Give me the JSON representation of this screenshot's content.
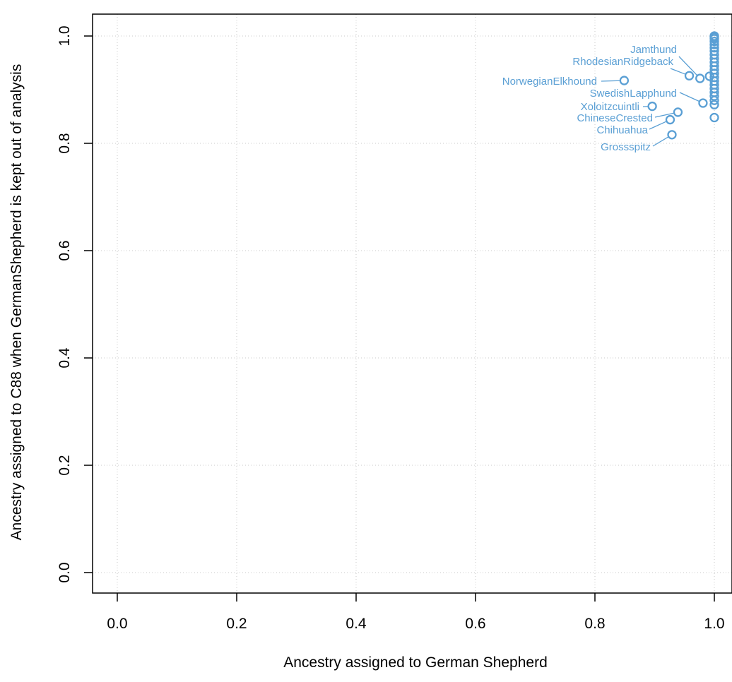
{
  "colors": {
    "points": "#5a9fd4",
    "axis": "#000000",
    "grid": "#c8c8c8"
  },
  "chart_data": {
    "type": "scatter",
    "title": "",
    "xlabel": "Ancestry assigned to German Shepherd",
    "ylabel": "Ancestry assigned to C88 when GermanShepherd is kept out of analysis",
    "xlim": [
      -0.04,
      1.04
    ],
    "ylim": [
      -0.04,
      1.04
    ],
    "xticks": [
      "0.0",
      "0.2",
      "0.4",
      "0.6",
      "0.8",
      "1.0"
    ],
    "yticks": [
      "0.0",
      "0.2",
      "0.4",
      "0.6",
      "0.8",
      "1.0"
    ],
    "grid": true,
    "series": [
      {
        "points": [
          {
            "x": 0.849,
            "y": 0.917,
            "label": "NorwegianElkhound"
          },
          {
            "x": 0.896,
            "y": 0.869,
            "label": "Xoloitzcuintli"
          },
          {
            "x": 0.939,
            "y": 0.858,
            "label": "ChineseCrested"
          },
          {
            "x": 0.926,
            "y": 0.844,
            "label": "Chihuahua"
          },
          {
            "x": 0.929,
            "y": 0.816,
            "label": "Grossspitz"
          },
          {
            "x": 0.958,
            "y": 0.926,
            "label": "RhodesianRidgeback"
          },
          {
            "x": 0.976,
            "y": 0.921,
            "label": "Jamthund"
          },
          {
            "x": 0.981,
            "y": 0.875,
            "label": "SwedishLapphund"
          },
          {
            "x": 0.992,
            "y": 0.925,
            "label": ""
          },
          {
            "x": 1.0,
            "y": 1.0,
            "label": ""
          },
          {
            "x": 1.0,
            "y": 0.998,
            "label": ""
          },
          {
            "x": 1.0,
            "y": 0.995,
            "label": ""
          },
          {
            "x": 1.0,
            "y": 0.99,
            "label": ""
          },
          {
            "x": 1.0,
            "y": 0.984,
            "label": ""
          },
          {
            "x": 1.0,
            "y": 0.978,
            "label": ""
          },
          {
            "x": 1.0,
            "y": 0.972,
            "label": ""
          },
          {
            "x": 1.0,
            "y": 0.965,
            "label": ""
          },
          {
            "x": 1.0,
            "y": 0.958,
            "label": ""
          },
          {
            "x": 1.0,
            "y": 0.951,
            "label": ""
          },
          {
            "x": 1.0,
            "y": 0.944,
            "label": ""
          },
          {
            "x": 1.0,
            "y": 0.937,
            "label": ""
          },
          {
            "x": 1.0,
            "y": 0.93,
            "label": ""
          },
          {
            "x": 1.0,
            "y": 0.923,
            "label": ""
          },
          {
            "x": 1.0,
            "y": 0.916,
            "label": ""
          },
          {
            "x": 1.0,
            "y": 0.909,
            "label": ""
          },
          {
            "x": 1.0,
            "y": 0.902,
            "label": ""
          },
          {
            "x": 1.0,
            "y": 0.895,
            "label": ""
          },
          {
            "x": 1.0,
            "y": 0.888,
            "label": ""
          },
          {
            "x": 1.0,
            "y": 0.88,
            "label": ""
          },
          {
            "x": 1.0,
            "y": 0.872,
            "label": ""
          },
          {
            "x": 1.0,
            "y": 0.848,
            "label": ""
          }
        ]
      }
    ]
  }
}
